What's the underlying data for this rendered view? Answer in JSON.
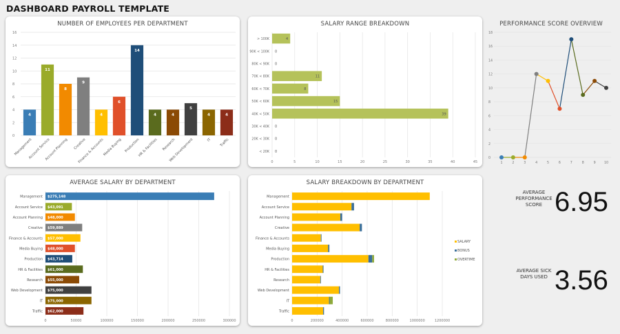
{
  "title": "DASHBOARD PAYROLL TEMPLATE",
  "departments": [
    "Management",
    "Account Service",
    "Account Planning",
    "Creative",
    "Finance & Accounts",
    "Media Buying",
    "Production",
    "HR & Facilities",
    "Research",
    "Web Development",
    "IT",
    "Traffic"
  ],
  "dept_colors": [
    "#3a7db5",
    "#9aab2a",
    "#f28a00",
    "#7f7f7f",
    "#ffbf00",
    "#e0502a",
    "#1f4e79",
    "#5a6b1e",
    "#8b4a05",
    "#404040",
    "#8b6500",
    "#8c2d19"
  ],
  "kpis": {
    "perf_label": "AVERAGE PERFORMANCE SCORE",
    "perf_value": "6.95",
    "sick_label": "AVERAGE SICK DAYS USED",
    "sick_value": "3.56"
  },
  "chart_data": [
    {
      "id": "employees",
      "type": "bar",
      "title": "NUMBER OF EMPLOYEES PER DEPARTMENT",
      "values": [
        4,
        11,
        8,
        9,
        4,
        6,
        14,
        4,
        4,
        5,
        4,
        4
      ],
      "ylim": [
        0,
        16
      ],
      "yticks": [
        0,
        2,
        4,
        6,
        8,
        10,
        12,
        14,
        16
      ],
      "grid": true
    },
    {
      "id": "salary_range",
      "type": "bar",
      "orientation": "horizontal",
      "title": "SALARY RANGE BREAKDOWN",
      "categories": [
        "> 100K",
        "90K < 100K",
        "80K < 90K",
        "70K < 80K",
        "60K < 70K",
        "50K < 60K",
        "40K < 50K",
        "30K < 40K",
        "20K < 30K",
        "< 20K"
      ],
      "values": [
        4,
        0,
        0,
        11,
        8,
        15,
        39,
        0,
        0,
        0
      ],
      "xlim": [
        0,
        45
      ],
      "xticks": [
        0,
        5,
        10,
        15,
        20,
        25,
        30,
        35,
        40,
        45
      ],
      "color": "#b5c25a",
      "grid": true
    },
    {
      "id": "avg_salary",
      "type": "bar",
      "orientation": "horizontal",
      "title": "AVERAGE SALARY BY DEPARTMENT",
      "values": [
        275148,
        43091,
        48000,
        59889,
        57000,
        48000,
        43714,
        61000,
        55000,
        75000,
        75000,
        62000
      ],
      "labels": [
        "$275,148",
        "$43,091",
        "$48,000",
        "$59,889",
        "$57,000",
        "$48,000",
        "$43,714",
        "$61,000",
        "$55,000",
        "$75,000",
        "$75,000",
        "$62,000"
      ],
      "xlim": [
        0,
        300000
      ],
      "xticks": [
        0,
        50000,
        100000,
        150000,
        200000,
        250000,
        300000
      ],
      "grid": true
    },
    {
      "id": "salary_breakdown",
      "type": "bar",
      "orientation": "horizontal",
      "stacked": true,
      "title": "SALARY BREAKDOWN BY DEPARTMENT",
      "series": [
        {
          "name": "SALARY",
          "color": "#ffbf00",
          "values": [
            1100000,
            475000,
            385000,
            540000,
            230000,
            288000,
            610000,
            245000,
            225000,
            375000,
            295000,
            248000
          ]
        },
        {
          "name": "BONUS",
          "color": "#3a6f9a",
          "values": [
            0,
            20000,
            15000,
            18000,
            5000,
            10000,
            30000,
            6000,
            5000,
            8000,
            5000,
            7000
          ]
        },
        {
          "name": "OVERTIME",
          "color": "#8faa3a",
          "values": [
            0,
            0,
            0,
            0,
            0,
            0,
            15000,
            0,
            0,
            0,
            25000,
            0
          ]
        }
      ],
      "xlim": [
        0,
        1200000
      ],
      "xticks": [
        0,
        200000,
        400000,
        600000,
        800000,
        1000000,
        1200000
      ],
      "legend": "right",
      "grid": true
    },
    {
      "id": "performance",
      "type": "line",
      "title": "PERFORMANCE SCORE OVERVIEW",
      "x": [
        1,
        2,
        3,
        4,
        5,
        6,
        7,
        8,
        9,
        10
      ],
      "values": [
        0,
        0,
        0,
        12,
        11,
        7,
        17,
        9,
        11,
        10
      ],
      "ylim": [
        0,
        18
      ],
      "yticks": [
        0,
        2,
        4,
        6,
        8,
        10,
        12,
        14,
        16,
        18
      ],
      "grid": true
    }
  ]
}
